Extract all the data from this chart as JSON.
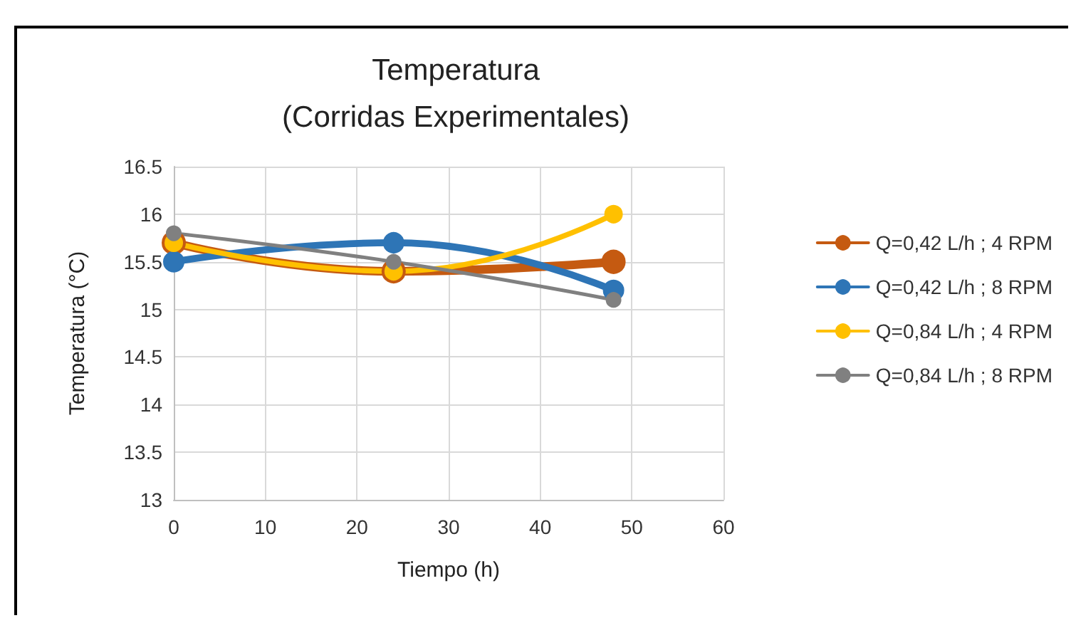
{
  "chart_data": {
    "type": "line",
    "title": "Temperatura\n(Corridas Experimentales)",
    "xlabel": "Tiempo (h)",
    "ylabel": "Temperatura (°C)",
    "x": [
      0,
      24,
      48
    ],
    "series": [
      {
        "name": "Q=0,42 L/h ; 4 RPM",
        "color": "#c55a11",
        "values": [
          15.7,
          15.4,
          15.5
        ]
      },
      {
        "name": "Q=0,42 L/h ; 8 RPM",
        "color": "#2e75b6",
        "values": [
          15.5,
          15.7,
          15.2
        ]
      },
      {
        "name": "Q=0,84 L/h ; 4 RPM",
        "color": "#ffc000",
        "values": [
          15.7,
          15.4,
          16
        ]
      },
      {
        "name": "Q=0,84 L/h ; 8 RPM",
        "color": "#808080",
        "values": [
          15.8,
          15.5,
          15.1
        ]
      }
    ],
    "xlim": [
      0,
      60
    ],
    "xticks": [
      0,
      10,
      20,
      30,
      40,
      50,
      60
    ],
    "ylim": [
      13,
      16.5
    ],
    "yticks": [
      13,
      13.5,
      14,
      14.5,
      15,
      15.5,
      16,
      16.5
    ],
    "grid": true,
    "legend": "right",
    "marker": "circle",
    "line_style": "solid"
  }
}
